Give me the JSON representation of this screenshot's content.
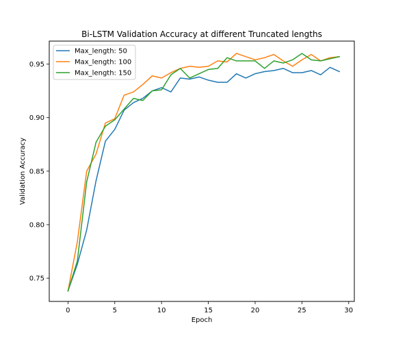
{
  "chart_data": {
    "type": "line",
    "title": "Bi-LSTM Validation Accuracy at different Truncated lengths",
    "xlabel": "Epoch",
    "ylabel": "Validation Accuracy",
    "xlim": [
      -2.0,
      30.6
    ],
    "ylim": [
      0.7283,
      0.9715
    ],
    "xticks": [
      0,
      5,
      10,
      15,
      20,
      25,
      30
    ],
    "yticks": [
      0.75,
      0.8,
      0.85,
      0.9,
      0.95
    ],
    "xtick_labels": [
      "0",
      "5",
      "10",
      "15",
      "20",
      "25",
      "30"
    ],
    "ytick_labels": [
      "0.75",
      "0.80",
      "0.85",
      "0.90",
      "0.95"
    ],
    "grid": false,
    "legend_position": "upper-left",
    "x": [
      0,
      1,
      2,
      3,
      4,
      5,
      6,
      7,
      8,
      9,
      10,
      11,
      12,
      13,
      14,
      15,
      16,
      17,
      18,
      19,
      20,
      21,
      22,
      23,
      24,
      25,
      26,
      27,
      28,
      29
    ],
    "series": [
      {
        "name": "Max_length: 50",
        "color": "#1f77b4",
        "values": [
          0.738,
          0.763,
          0.795,
          0.841,
          0.878,
          0.889,
          0.907,
          0.914,
          0.918,
          0.925,
          0.928,
          0.924,
          0.937,
          0.936,
          0.938,
          0.935,
          0.933,
          0.933,
          0.941,
          0.937,
          0.941,
          0.943,
          0.944,
          0.946,
          0.942,
          0.942,
          0.944,
          0.94,
          0.947,
          0.943
        ]
      },
      {
        "name": "Max_length: 100",
        "color": "#ff7f0e",
        "values": [
          0.738,
          0.784,
          0.85,
          0.866,
          0.895,
          0.899,
          0.921,
          0.924,
          0.931,
          0.939,
          0.937,
          0.942,
          0.946,
          0.948,
          0.947,
          0.948,
          0.953,
          0.952,
          0.96,
          0.957,
          0.954,
          0.956,
          0.959,
          0.953,
          0.948,
          0.954,
          0.959,
          0.953,
          0.956,
          0.957
        ]
      },
      {
        "name": "Max_length: 150",
        "color": "#2ca02c",
        "values": [
          0.738,
          0.766,
          0.84,
          0.877,
          0.892,
          0.898,
          0.908,
          0.918,
          0.916,
          0.925,
          0.926,
          0.94,
          0.946,
          0.937,
          0.941,
          0.945,
          0.946,
          0.956,
          0.953,
          0.953,
          0.953,
          0.946,
          0.953,
          0.951,
          0.954,
          0.96,
          0.954,
          0.953,
          0.955,
          0.957
        ]
      }
    ]
  }
}
